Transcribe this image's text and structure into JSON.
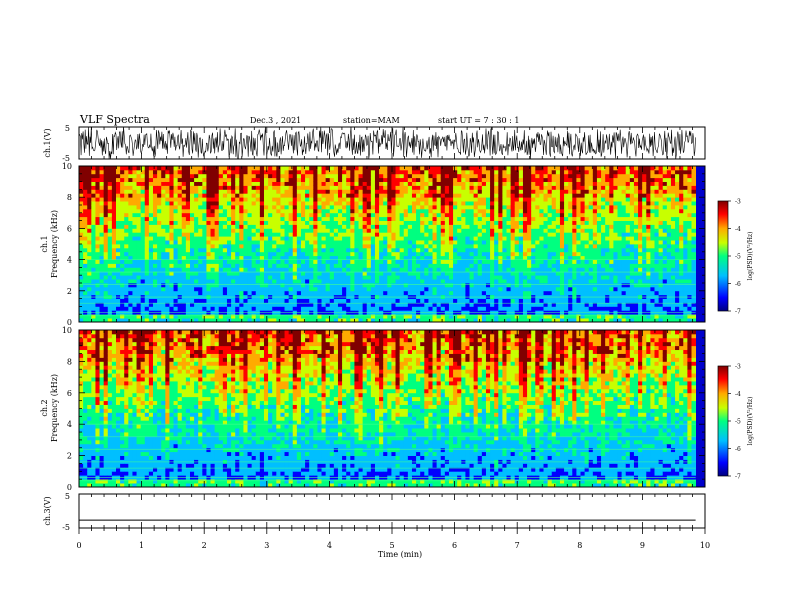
{
  "header": {
    "title": "VLF Spectra",
    "date": "Dec.3 , 2021",
    "station": "station=MAM",
    "start": "start UT = 7 : 30 : 1"
  },
  "chart_data": [
    {
      "type": "line",
      "panel": "waveform-ch1",
      "ylabel": "ch.1(V)",
      "ylim": [
        -5,
        5
      ],
      "yticks": [
        "5",
        "-5"
      ],
      "xlim": [
        0,
        10
      ],
      "series": [
        {
          "values": "dense broadband noise, amplitude approximately ±3 to ±5 V over 0–9.85 min"
        }
      ]
    },
    {
      "type": "heatmap",
      "panel": "spectrogram-ch1",
      "ylabel": "ch.1",
      "ylabel2": "Frequency (kHz)",
      "ylim": [
        0,
        10
      ],
      "yticks": [
        "0",
        "2",
        "4",
        "6",
        "8",
        "10"
      ],
      "xlim": [
        0,
        10
      ],
      "data_extent_min": 9.85,
      "colorbar": {
        "label": "log(PSD)(V²/Hz)",
        "range": [
          -7,
          -3
        ],
        "ticks": [
          "-3",
          "-4",
          "-5",
          "-6",
          "-7"
        ],
        "colors": [
          "#00007f",
          "#0000ff",
          "#00bfff",
          "#00ff80",
          "#c8ff00",
          "#ffaa00",
          "#ff0000",
          "#800000"
        ]
      }
    },
    {
      "type": "heatmap",
      "panel": "spectrogram-ch2",
      "ylabel": "ch.2",
      "ylabel2": "Frequency (kHz)",
      "ylim": [
        0,
        10
      ],
      "yticks": [
        "0",
        "2",
        "4",
        "6",
        "8",
        "10"
      ],
      "xlim": [
        0,
        10
      ],
      "data_extent_min": 9.85,
      "colorbar": {
        "label": "log(PSD)(V²/Hz)",
        "range": [
          -7,
          -3
        ],
        "ticks": [
          "-3",
          "-4",
          "-5",
          "-6",
          "-7"
        ]
      }
    },
    {
      "type": "line",
      "panel": "waveform-ch3",
      "ylabel": "ch.3(V)",
      "ylim": [
        -5,
        5
      ],
      "yticks": [
        "5",
        "-5"
      ],
      "xlim": [
        0,
        10
      ],
      "series": [
        {
          "values": "flat line at approximately -2.7 V"
        }
      ]
    }
  ],
  "xaxis": {
    "label": "Time (min)",
    "ticks": [
      "0",
      "1",
      "2",
      "3",
      "4",
      "5",
      "6",
      "7",
      "8",
      "9",
      "10"
    ]
  }
}
